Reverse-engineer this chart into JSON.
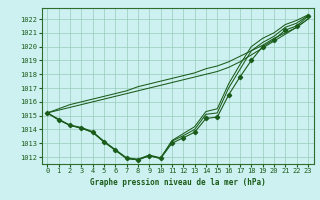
{
  "title": "Graphe pression niveau de la mer (hPa)",
  "bg_color": "#cdf0f0",
  "plot_bg": "#cdf0f0",
  "grid_color": "#99ccbb",
  "line_color": "#1a5c1a",
  "border_color": "#2d6e2d",
  "xlim_min": -0.5,
  "xlim_max": 23.5,
  "ylim_min": 1011.5,
  "ylim_max": 1022.8,
  "yticks": [
    1012,
    1013,
    1014,
    1015,
    1016,
    1017,
    1018,
    1019,
    1020,
    1021,
    1022
  ],
  "xticks": [
    0,
    1,
    2,
    3,
    4,
    5,
    6,
    7,
    8,
    9,
    10,
    11,
    12,
    13,
    14,
    15,
    16,
    17,
    18,
    19,
    20,
    21,
    22,
    23
  ],
  "main_data": [
    1015.2,
    1014.7,
    1014.3,
    1014.1,
    1013.8,
    1013.1,
    1012.5,
    1011.9,
    1011.8,
    1012.1,
    1011.9,
    1013.0,
    1013.4,
    1013.8,
    1014.8,
    1014.9,
    1016.5,
    1017.8,
    1019.0,
    1020.0,
    1020.5,
    1021.2,
    1021.5,
    1022.2
  ],
  "line2_data": [
    1015.2,
    1014.7,
    1014.3,
    1014.1,
    1013.8,
    1013.1,
    1012.5,
    1011.9,
    1011.8,
    1012.1,
    1011.9,
    1013.2,
    1013.7,
    1014.2,
    1015.3,
    1015.5,
    1017.3,
    1018.7,
    1020.0,
    1020.6,
    1021.0,
    1021.6,
    1021.9,
    1022.3
  ],
  "line3_data": [
    1015.2,
    1014.75,
    1014.32,
    1014.15,
    1013.85,
    1013.15,
    1012.55,
    1011.95,
    1011.85,
    1012.15,
    1011.95,
    1013.15,
    1013.55,
    1014.0,
    1015.1,
    1015.2,
    1017.0,
    1018.35,
    1019.7,
    1020.3,
    1020.75,
    1021.4,
    1021.7,
    1022.25
  ],
  "straight_line": [
    1015.2,
    1015.4,
    1015.6,
    1015.8,
    1016.0,
    1016.2,
    1016.4,
    1016.6,
    1016.8,
    1017.0,
    1017.2,
    1017.4,
    1017.6,
    1017.8,
    1018.0,
    1018.2,
    1018.5,
    1018.9,
    1019.4,
    1019.9,
    1020.4,
    1020.9,
    1021.4,
    1022.0
  ],
  "straight_line2": [
    1015.2,
    1015.5,
    1015.8,
    1016.0,
    1016.2,
    1016.4,
    1016.6,
    1016.8,
    1017.1,
    1017.3,
    1017.5,
    1017.7,
    1017.9,
    1018.1,
    1018.4,
    1018.6,
    1018.9,
    1019.3,
    1019.7,
    1020.1,
    1020.6,
    1021.0,
    1021.4,
    1022.0
  ]
}
